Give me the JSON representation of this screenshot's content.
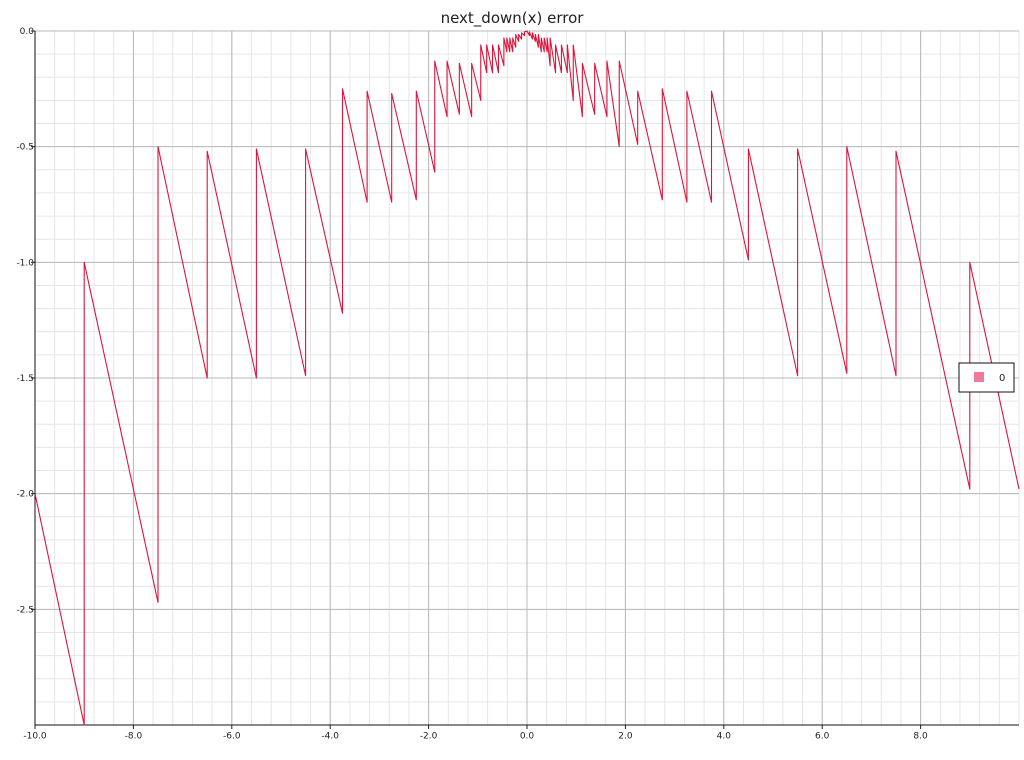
{
  "chart_data": {
    "type": "line",
    "title": "next_down(x) error",
    "xlabel": "",
    "ylabel": "",
    "xlim": [
      -10.0,
      10.0
    ],
    "ylim": [
      -3.0,
      0.0
    ],
    "grid": true,
    "legend_position": "right",
    "x_ticks": [
      "-10.0",
      "-8.0",
      "-6.0",
      "-4.0",
      "-2.0",
      "0.0",
      "2.0",
      "4.0",
      "6.0",
      "8.0"
    ],
    "y_ticks": [
      "0.0",
      "-0.5",
      "-1.0",
      "-1.5",
      "-2.0",
      "-2.5"
    ],
    "series": [
      {
        "name": "0",
        "color": "#dc143c",
        "legend_color": "#f07a9a",
        "points": [
          [
            -10.0,
            -2.0
          ],
          [
            -9.0,
            -3.0
          ],
          [
            -9.0,
            -1.0
          ],
          [
            -7.5,
            -2.47
          ],
          [
            -7.5,
            -0.5
          ],
          [
            -6.5,
            -1.5
          ],
          [
            -6.5,
            -0.52
          ],
          [
            -5.5,
            -1.5
          ],
          [
            -5.5,
            -0.51
          ],
          [
            -4.5,
            -1.49
          ],
          [
            -4.5,
            -0.51
          ],
          [
            -3.75,
            -1.22
          ],
          [
            -3.75,
            -0.25
          ],
          [
            -3.25,
            -0.74
          ],
          [
            -3.25,
            -0.26
          ],
          [
            -2.75,
            -0.74
          ],
          [
            -2.75,
            -0.27
          ],
          [
            -2.25,
            -0.73
          ],
          [
            -2.25,
            -0.26
          ],
          [
            -1.875,
            -0.61
          ],
          [
            -1.875,
            -0.13
          ],
          [
            -1.625,
            -0.37
          ],
          [
            -1.625,
            -0.13
          ],
          [
            -1.375,
            -0.36
          ],
          [
            -1.375,
            -0.14
          ],
          [
            -1.125,
            -0.37
          ],
          [
            -1.125,
            -0.14
          ],
          [
            -0.94,
            -0.3
          ],
          [
            -0.94,
            -0.06
          ],
          [
            -0.82,
            -0.18
          ],
          [
            -0.82,
            -0.06
          ],
          [
            -0.7,
            -0.18
          ],
          [
            -0.7,
            -0.06
          ],
          [
            -0.58,
            -0.18
          ],
          [
            -0.58,
            -0.06
          ],
          [
            -0.47,
            -0.15
          ],
          [
            -0.47,
            -0.03
          ],
          [
            -0.41,
            -0.09
          ],
          [
            -0.41,
            -0.03
          ],
          [
            -0.35,
            -0.09
          ],
          [
            -0.35,
            -0.03
          ],
          [
            -0.29,
            -0.09
          ],
          [
            -0.29,
            -0.03
          ],
          [
            -0.23,
            -0.07
          ],
          [
            -0.23,
            -0.015
          ],
          [
            -0.17,
            -0.045
          ],
          [
            -0.17,
            -0.015
          ],
          [
            -0.11,
            -0.035
          ],
          [
            -0.11,
            -0.008
          ],
          [
            -0.05,
            -0.02
          ],
          [
            -0.05,
            -0.004
          ],
          [
            0.0,
            0.0
          ],
          [
            0.05,
            -0.02
          ],
          [
            0.05,
            -0.004
          ],
          [
            0.11,
            -0.035
          ],
          [
            0.11,
            -0.008
          ],
          [
            0.17,
            -0.045
          ],
          [
            0.17,
            -0.015
          ],
          [
            0.23,
            -0.07
          ],
          [
            0.23,
            -0.015
          ],
          [
            0.29,
            -0.09
          ],
          [
            0.29,
            -0.03
          ],
          [
            0.35,
            -0.09
          ],
          [
            0.35,
            -0.03
          ],
          [
            0.41,
            -0.09
          ],
          [
            0.41,
            -0.03
          ],
          [
            0.47,
            -0.15
          ],
          [
            0.47,
            -0.03
          ],
          [
            0.58,
            -0.18
          ],
          [
            0.58,
            -0.06
          ],
          [
            0.7,
            -0.18
          ],
          [
            0.7,
            -0.06
          ],
          [
            0.82,
            -0.18
          ],
          [
            0.82,
            -0.06
          ],
          [
            0.94,
            -0.3
          ],
          [
            0.94,
            -0.06
          ],
          [
            1.125,
            -0.37
          ],
          [
            1.125,
            -0.14
          ],
          [
            1.375,
            -0.36
          ],
          [
            1.375,
            -0.14
          ],
          [
            1.625,
            -0.37
          ],
          [
            1.625,
            -0.13
          ],
          [
            1.875,
            -0.5
          ],
          [
            1.875,
            -0.13
          ],
          [
            2.25,
            -0.49
          ],
          [
            2.25,
            -0.26
          ],
          [
            2.75,
            -0.73
          ],
          [
            2.75,
            -0.25
          ],
          [
            3.25,
            -0.74
          ],
          [
            3.25,
            -0.26
          ],
          [
            3.75,
            -0.74
          ],
          [
            3.75,
            -0.26
          ],
          [
            4.5,
            -0.99
          ],
          [
            4.5,
            -0.51
          ],
          [
            5.5,
            -1.49
          ],
          [
            5.5,
            -0.51
          ],
          [
            6.5,
            -1.48
          ],
          [
            6.5,
            -0.5
          ],
          [
            7.5,
            -1.49
          ],
          [
            7.5,
            -0.52
          ],
          [
            9.0,
            -1.98
          ],
          [
            9.0,
            -1.0
          ],
          [
            10.0,
            -1.98
          ]
        ]
      }
    ]
  }
}
